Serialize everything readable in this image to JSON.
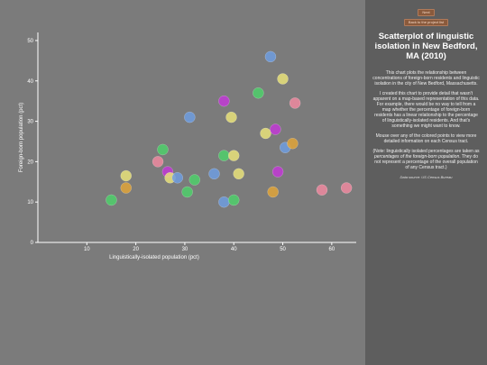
{
  "nav": {
    "top_button": "Next",
    "bottom_button": "Back to the project list"
  },
  "panel": {
    "title": "Scatterplot of linguistic isolation in New Bedford, MA (2010)",
    "para1": "This chart plots the relationship between concentrations of foreign-born residents and linguistic isolation in the city of New Bedford, Massachusetts.",
    "para2": "I created this chart to provide detail that wasn't apparent on a map-based representation of this data. For example, there would be no way to tell from a map whether the percentage of foreign-born residents has a linear relationship to the percentage of linguistically-isolated residents. And that's something we might want to know.",
    "para3": "Mouse over any of the colored points to view more detailed information on each Census tract.",
    "para4_prefix": "(Note: linguistically isolated percentages are taken as ",
    "para4_em": "percentages of the foreign-born population",
    "para4_suffix": ". They do not represent a percentage of the overall population of any Census tract.)",
    "source": "Data source: US Census Bureau"
  },
  "chart_data": {
    "type": "scatter",
    "xlabel": "Linguistically-isolated population (pct)",
    "ylabel": "Foreign-born population (pct)",
    "xlim": [
      0,
      65
    ],
    "ylim": [
      0,
      52
    ],
    "x_ticks": [
      10,
      20,
      30,
      40,
      50,
      60
    ],
    "y_ticks": [
      0,
      10,
      20,
      30,
      40,
      50
    ],
    "grid": false,
    "points": [
      {
        "x": 15,
        "y": 10.5,
        "color": "#4fd06b"
      },
      {
        "x": 18,
        "y": 16.5,
        "color": "#e9e27a"
      },
      {
        "x": 18,
        "y": 13.5,
        "color": "#e0a53a"
      },
      {
        "x": 24.5,
        "y": 20,
        "color": "#ee8aa0"
      },
      {
        "x": 25.5,
        "y": 23,
        "color": "#4fd06b"
      },
      {
        "x": 26.5,
        "y": 17.5,
        "color": "#c23ad6"
      },
      {
        "x": 27,
        "y": 16,
        "color": "#e9e27a"
      },
      {
        "x": 28.5,
        "y": 16,
        "color": "#6f9de0"
      },
      {
        "x": 30.5,
        "y": 12.5,
        "color": "#4fd06b"
      },
      {
        "x": 31,
        "y": 31,
        "color": "#6f9de0"
      },
      {
        "x": 32,
        "y": 15.5,
        "color": "#4fd06b"
      },
      {
        "x": 36,
        "y": 17,
        "color": "#6f9de0"
      },
      {
        "x": 38,
        "y": 21.5,
        "color": "#4fd06b"
      },
      {
        "x": 38,
        "y": 10,
        "color": "#6f9de0"
      },
      {
        "x": 38,
        "y": 35,
        "color": "#c23ad6"
      },
      {
        "x": 39.5,
        "y": 31,
        "color": "#e9e27a"
      },
      {
        "x": 40,
        "y": 21.5,
        "color": "#e9e27a"
      },
      {
        "x": 40,
        "y": 10.5,
        "color": "#4fd06b"
      },
      {
        "x": 41,
        "y": 17,
        "color": "#e9e27a"
      },
      {
        "x": 45,
        "y": 37,
        "color": "#4fd06b"
      },
      {
        "x": 46.5,
        "y": 27,
        "color": "#e9e27a"
      },
      {
        "x": 47.5,
        "y": 46,
        "color": "#6f9de0"
      },
      {
        "x": 48,
        "y": 12.5,
        "color": "#e0a53a"
      },
      {
        "x": 48.5,
        "y": 28,
        "color": "#c23ad6"
      },
      {
        "x": 49,
        "y": 17.5,
        "color": "#c23ad6"
      },
      {
        "x": 50,
        "y": 40.5,
        "color": "#e9e27a"
      },
      {
        "x": 50.5,
        "y": 23.5,
        "color": "#6f9de0"
      },
      {
        "x": 52,
        "y": 24.5,
        "color": "#e0a53a"
      },
      {
        "x": 52.5,
        "y": 34.5,
        "color": "#ee8aa0"
      },
      {
        "x": 58,
        "y": 13,
        "color": "#ee8aa0"
      },
      {
        "x": 63,
        "y": 13.5,
        "color": "#ee8aa0"
      }
    ]
  }
}
